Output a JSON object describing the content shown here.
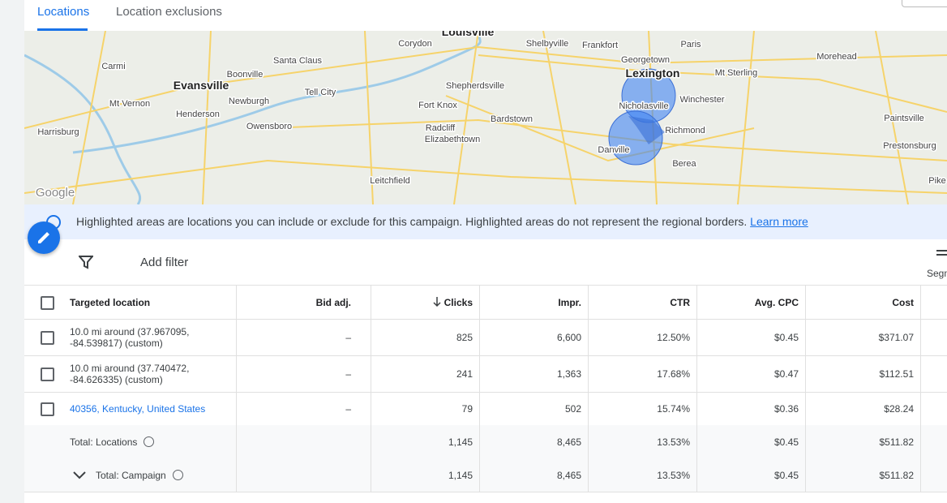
{
  "tabs": [
    "Locations",
    "Location exclusions"
  ],
  "map": {
    "labels": [
      "Louisville",
      "Corydon",
      "Shelbyville",
      "Frankfort",
      "Paris",
      "Georgetown",
      "Morehead",
      "Carmi",
      "Santa Claus",
      "Boonville",
      "Evansville",
      "Lexington",
      "Mt Sterling",
      "Tell City",
      "Mt Vernon",
      "Newburgh",
      "Shepherdsville",
      "Henderson",
      "Fort Knox",
      "Winchester",
      "Nicholasville",
      "Owensboro",
      "Bardstown",
      "Paintsville",
      "Harrisburg",
      "Radcliff",
      "Elizabethtown",
      "Richmond",
      "Prestonsburg",
      "Danville",
      "Berea",
      "Leitchfield",
      "Pike",
      "Google"
    ]
  },
  "banner": {
    "text": "Highlighted areas are locations you can include or exclude for this campaign. Highlighted areas do not represent the regional borders.",
    "link": "Learn more"
  },
  "toolbar": {
    "filter": "Add filter",
    "segment": "Segm"
  },
  "table": {
    "columns": [
      "Targeted location",
      "Bid adj.",
      "Clicks",
      "Impr.",
      "CTR",
      "Avg. CPC",
      "Cost"
    ],
    "rows": [
      [
        "10.0 mi around (37.967095, -84.539817) (custom)",
        "–",
        "825",
        "6,600",
        "12.50%",
        "$0.45",
        "$371.07"
      ],
      [
        "10.0 mi around (37.740472, -84.626335) (custom)",
        "–",
        "241",
        "1,363",
        "17.68%",
        "$0.47",
        "$112.51"
      ],
      [
        "40356, Kentucky, United States",
        "–",
        "79",
        "502",
        "15.74%",
        "$0.36",
        "$28.24"
      ]
    ],
    "totals": [
      [
        "Total: Locations",
        "1,145",
        "8,465",
        "13.53%",
        "$0.45",
        "$511.82"
      ],
      [
        "Total: Campaign",
        "1,145",
        "8,465",
        "13.53%",
        "$0.45",
        "$511.82"
      ]
    ]
  }
}
